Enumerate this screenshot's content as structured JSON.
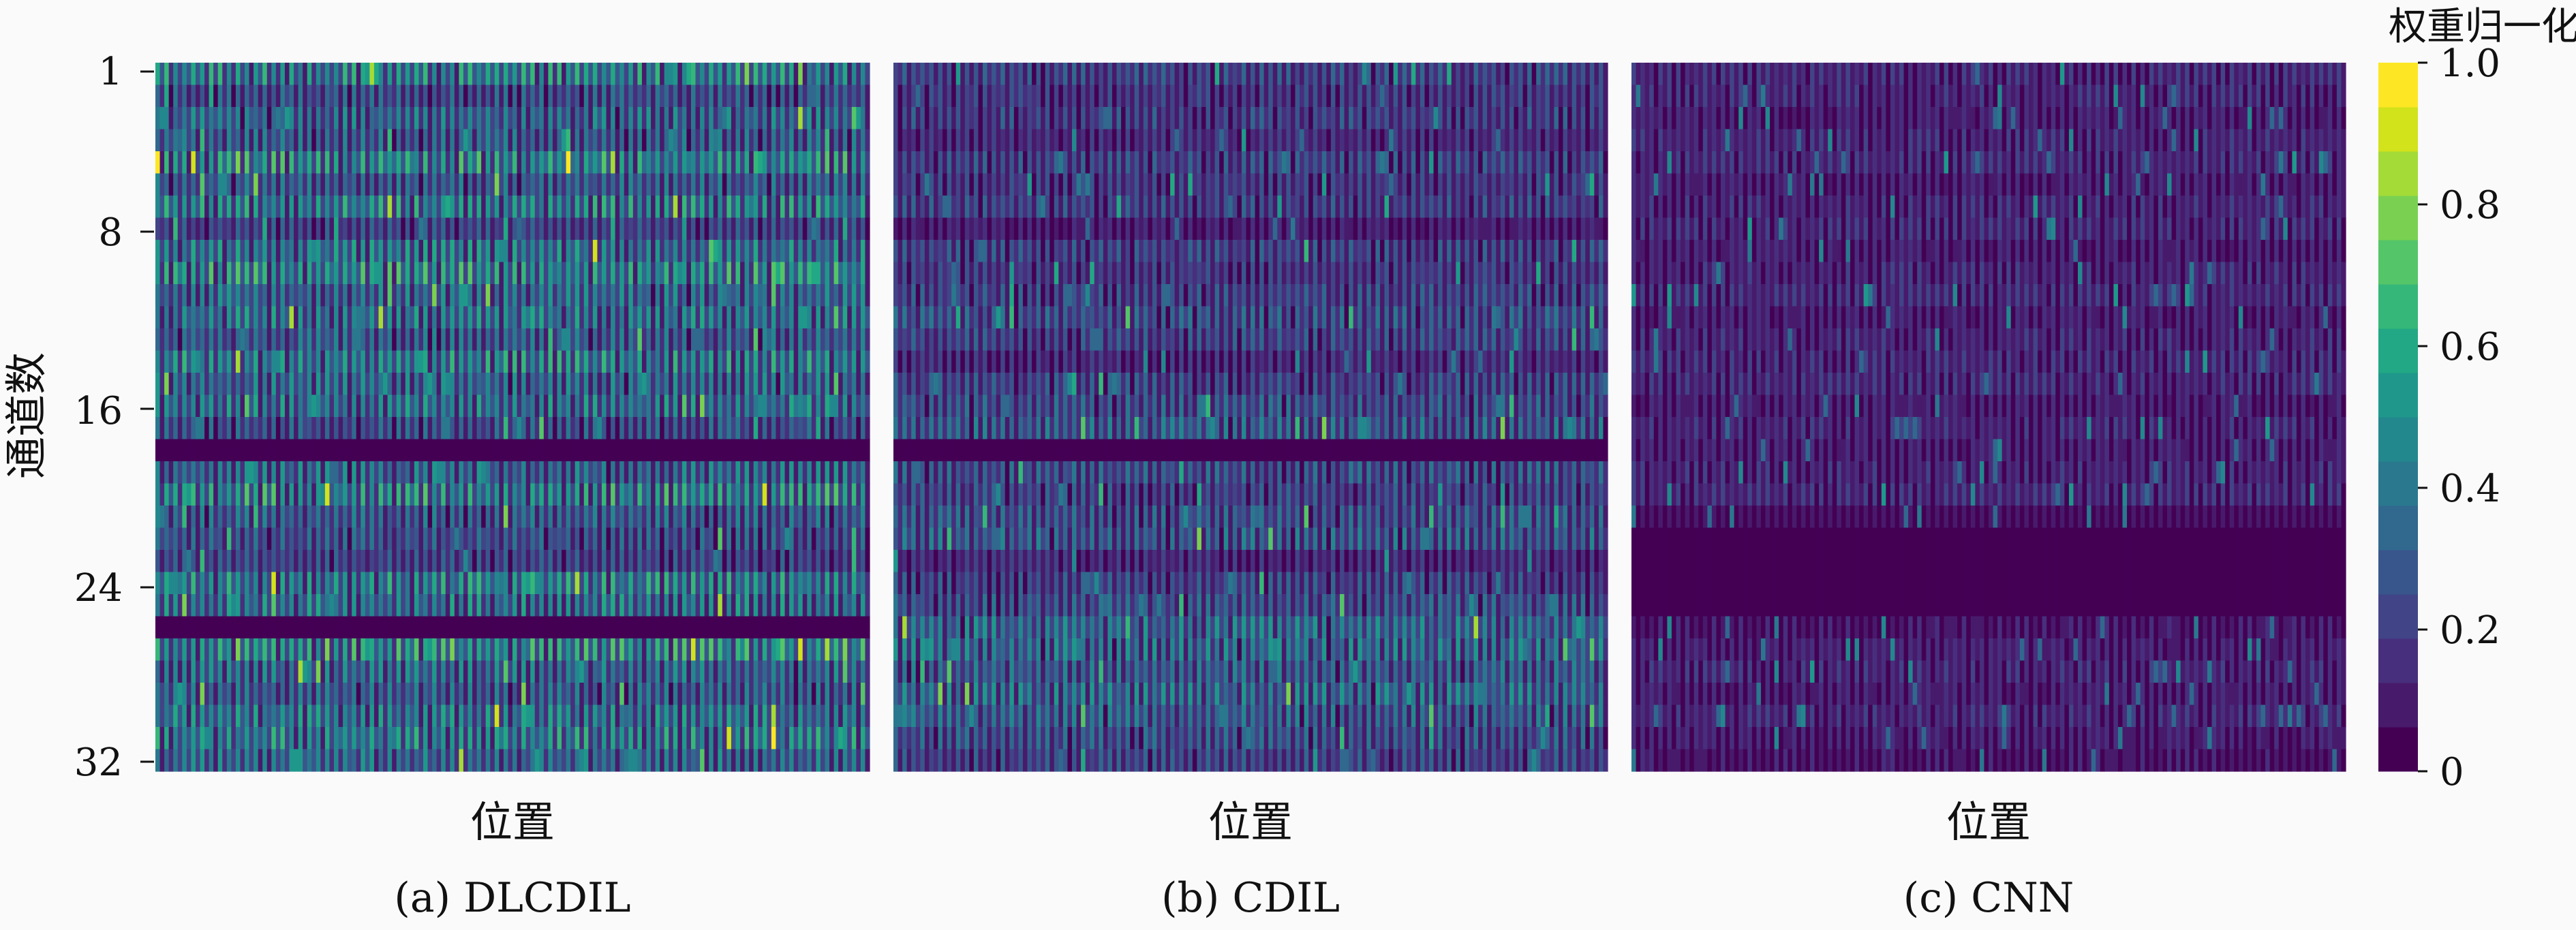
{
  "chart_data": [
    {
      "type": "heatmap",
      "caption": "(a) DLCDIL",
      "xlabel": "位置",
      "ylabel": "通道数",
      "y_ticks": [
        "1",
        "8",
        "16",
        "24",
        "32"
      ],
      "rows": 32,
      "columns": 160,
      "value_range": [
        0,
        1
      ],
      "row_mean_weights": [
        0.55,
        0.35,
        0.45,
        0.4,
        0.6,
        0.4,
        0.55,
        0.3,
        0.5,
        0.6,
        0.45,
        0.5,
        0.4,
        0.55,
        0.45,
        0.5,
        0.35,
        0.02,
        0.45,
        0.6,
        0.4,
        0.35,
        0.3,
        0.55,
        0.5,
        0.03,
        0.6,
        0.45,
        0.4,
        0.5,
        0.55,
        0.45
      ]
    },
    {
      "type": "heatmap",
      "caption": "(b) CDIL",
      "xlabel": "位置",
      "rows": 32,
      "columns": 160,
      "value_range": [
        0,
        1
      ],
      "row_mean_weights": [
        0.3,
        0.25,
        0.28,
        0.2,
        0.3,
        0.25,
        0.28,
        0.15,
        0.3,
        0.25,
        0.3,
        0.35,
        0.3,
        0.2,
        0.3,
        0.35,
        0.4,
        0.05,
        0.35,
        0.3,
        0.35,
        0.4,
        0.2,
        0.3,
        0.35,
        0.45,
        0.45,
        0.4,
        0.45,
        0.4,
        0.35,
        0.3
      ]
    },
    {
      "type": "heatmap",
      "caption": "(c) CNN",
      "xlabel": "位置",
      "rows": 32,
      "columns": 160,
      "value_range": [
        0,
        1
      ],
      "row_mean_weights": [
        0.2,
        0.18,
        0.15,
        0.18,
        0.2,
        0.15,
        0.18,
        0.2,
        0.15,
        0.18,
        0.2,
        0.15,
        0.18,
        0.2,
        0.2,
        0.15,
        0.18,
        0.15,
        0.18,
        0.2,
        0.1,
        0.05,
        0.03,
        0.03,
        0.05,
        0.12,
        0.15,
        0.18,
        0.15,
        0.18,
        0.15,
        0.12
      ]
    }
  ],
  "colorbar": {
    "title": "权重归一化",
    "ticks": [
      "1.0",
      "0.8",
      "0.6",
      "0.4",
      "0.2",
      "0"
    ],
    "tick_values": [
      1.0,
      0.8,
      0.6,
      0.4,
      0.2,
      0
    ],
    "levels": 16,
    "colormap": "viridis",
    "colors": [
      "#440154",
      "#481a6c",
      "#472f7d",
      "#414487",
      "#39568c",
      "#31688e",
      "#2a788e",
      "#23888e",
      "#1f988b",
      "#22a884",
      "#35b779",
      "#54c568",
      "#7ad151",
      "#a5db36",
      "#d2e21b",
      "#fde725"
    ]
  }
}
